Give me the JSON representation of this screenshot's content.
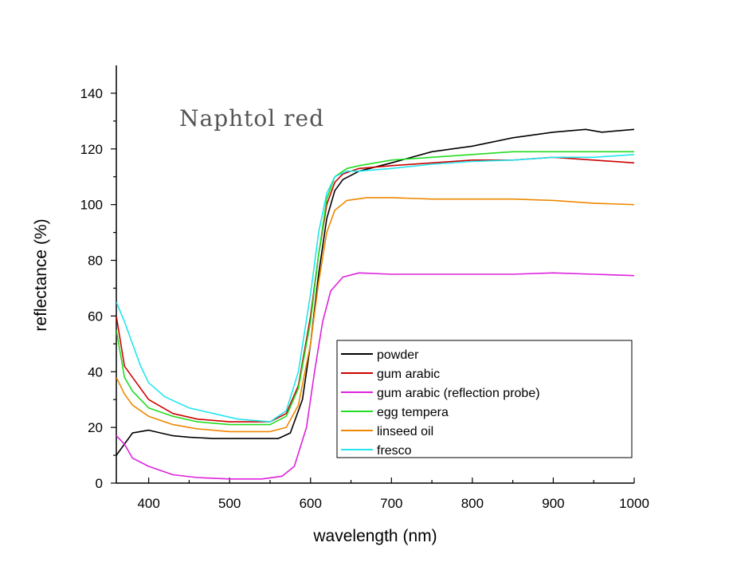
{
  "chart_data": {
    "type": "line",
    "title": "Naphtol red",
    "xlabel": "wavelength (nm)",
    "ylabel": "reflectance (%)",
    "xlim": [
      360,
      1000
    ],
    "ylim": [
      0,
      150
    ],
    "xticks": [
      400,
      500,
      600,
      700,
      800,
      900,
      1000
    ],
    "yticks": [
      0,
      20,
      40,
      60,
      80,
      100,
      120,
      140
    ],
    "grid": false,
    "legend_position": "center-right",
    "series": [
      {
        "name": "powder",
        "color": "#000000",
        "points": [
          [
            360,
            10
          ],
          [
            380,
            18
          ],
          [
            400,
            19
          ],
          [
            430,
            17
          ],
          [
            450,
            16.5
          ],
          [
            480,
            16
          ],
          [
            520,
            16
          ],
          [
            560,
            16
          ],
          [
            575,
            18
          ],
          [
            590,
            30
          ],
          [
            600,
            50
          ],
          [
            610,
            75
          ],
          [
            620,
            95
          ],
          [
            630,
            105
          ],
          [
            640,
            109
          ],
          [
            660,
            112
          ],
          [
            700,
            115
          ],
          [
            750,
            119
          ],
          [
            800,
            121
          ],
          [
            850,
            124
          ],
          [
            900,
            126
          ],
          [
            940,
            127
          ],
          [
            960,
            126
          ],
          [
            1000,
            127
          ]
        ]
      },
      {
        "name": "gum arabic",
        "color": "#cc0000",
        "points": [
          [
            360,
            60
          ],
          [
            370,
            42
          ],
          [
            380,
            38
          ],
          [
            400,
            30
          ],
          [
            430,
            25
          ],
          [
            460,
            23
          ],
          [
            500,
            22
          ],
          [
            550,
            22
          ],
          [
            570,
            25
          ],
          [
            585,
            35
          ],
          [
            600,
            60
          ],
          [
            610,
            82
          ],
          [
            620,
            100
          ],
          [
            630,
            108
          ],
          [
            640,
            111
          ],
          [
            660,
            113
          ],
          [
            700,
            114
          ],
          [
            750,
            115
          ],
          [
            800,
            116
          ],
          [
            850,
            116
          ],
          [
            900,
            117
          ],
          [
            950,
            116
          ],
          [
            1000,
            115
          ]
        ]
      },
      {
        "name": "gum arabic (reflection probe)",
        "color": "#dd22dd",
        "points": [
          [
            360,
            17
          ],
          [
            370,
            14
          ],
          [
            380,
            9
          ],
          [
            400,
            6
          ],
          [
            430,
            3
          ],
          [
            460,
            2
          ],
          [
            500,
            1.5
          ],
          [
            540,
            1.5
          ],
          [
            565,
            2.5
          ],
          [
            580,
            6
          ],
          [
            595,
            20
          ],
          [
            605,
            40
          ],
          [
            615,
            58
          ],
          [
            625,
            69
          ],
          [
            640,
            74
          ],
          [
            660,
            75.5
          ],
          [
            700,
            75
          ],
          [
            750,
            75
          ],
          [
            800,
            75
          ],
          [
            850,
            75
          ],
          [
            900,
            75.5
          ],
          [
            950,
            75
          ],
          [
            1000,
            74.5
          ]
        ]
      },
      {
        "name": "egg tempera",
        "color": "#22dd22",
        "points": [
          [
            360,
            55
          ],
          [
            370,
            38
          ],
          [
            380,
            33
          ],
          [
            400,
            27
          ],
          [
            430,
            24
          ],
          [
            460,
            22
          ],
          [
            500,
            21
          ],
          [
            550,
            21
          ],
          [
            570,
            24
          ],
          [
            585,
            34
          ],
          [
            600,
            58
          ],
          [
            610,
            82
          ],
          [
            620,
            102
          ],
          [
            630,
            110
          ],
          [
            645,
            113
          ],
          [
            660,
            114
          ],
          [
            700,
            116
          ],
          [
            750,
            117
          ],
          [
            800,
            118
          ],
          [
            850,
            119
          ],
          [
            900,
            119
          ],
          [
            950,
            119
          ],
          [
            1000,
            119
          ]
        ]
      },
      {
        "name": "linseed oil",
        "color": "#ee8800",
        "points": [
          [
            360,
            38
          ],
          [
            370,
            32
          ],
          [
            380,
            28
          ],
          [
            400,
            24
          ],
          [
            430,
            21
          ],
          [
            460,
            19.5
          ],
          [
            500,
            18.5
          ],
          [
            550,
            18.5
          ],
          [
            570,
            20
          ],
          [
            585,
            28
          ],
          [
            600,
            50
          ],
          [
            610,
            72
          ],
          [
            620,
            90
          ],
          [
            630,
            98
          ],
          [
            645,
            101.5
          ],
          [
            670,
            102.5
          ],
          [
            700,
            102.5
          ],
          [
            750,
            102
          ],
          [
            800,
            102
          ],
          [
            850,
            102
          ],
          [
            900,
            101.5
          ],
          [
            950,
            100.5
          ],
          [
            1000,
            100
          ]
        ]
      },
      {
        "name": "fresco",
        "color": "#22e5ee",
        "points": [
          [
            360,
            65
          ],
          [
            370,
            58
          ],
          [
            380,
            50
          ],
          [
            390,
            42
          ],
          [
            400,
            36
          ],
          [
            420,
            31
          ],
          [
            450,
            27
          ],
          [
            480,
            25
          ],
          [
            510,
            23
          ],
          [
            550,
            22
          ],
          [
            570,
            26
          ],
          [
            585,
            40
          ],
          [
            600,
            68
          ],
          [
            610,
            90
          ],
          [
            620,
            104
          ],
          [
            630,
            110
          ],
          [
            645,
            112
          ],
          [
            660,
            112
          ],
          [
            700,
            113
          ],
          [
            750,
            114.5
          ],
          [
            800,
            115.5
          ],
          [
            850,
            116
          ],
          [
            900,
            117
          ],
          [
            950,
            117
          ],
          [
            1000,
            118
          ]
        ]
      }
    ]
  }
}
